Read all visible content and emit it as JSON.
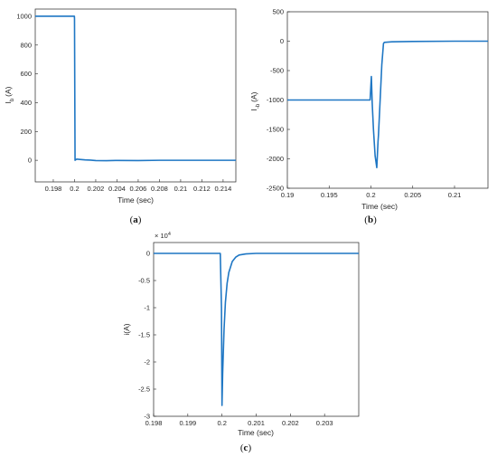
{
  "chart_data": [
    {
      "type": "line",
      "caption": "a",
      "title": "",
      "xlabel": "Time (sec)",
      "ylabel": "I",
      "ylabel_sub": "b",
      "ylabel_unit": "(A)",
      "xlim": [
        0.1963,
        0.2152
      ],
      "ylim": [
        -150,
        1050
      ],
      "xticks": [
        0.198,
        0.2,
        0.202,
        0.204,
        0.206,
        0.208,
        0.21,
        0.212,
        0.214
      ],
      "xtick_labels": [
        "0.198",
        "0.2",
        "0.202",
        "0.204",
        "0.206",
        "0.208",
        "0.21",
        "0.212",
        "0.214"
      ],
      "yticks": [
        0,
        200,
        400,
        600,
        800,
        1000
      ],
      "ytick_labels": [
        "0",
        "200",
        "400",
        "600",
        "800",
        "1000"
      ],
      "grid": true,
      "series": [
        {
          "color": "#1f77c4",
          "x": [
            0.1963,
            0.19999,
            0.2,
            0.20005,
            0.2002,
            0.2005,
            0.201,
            0.2015,
            0.202,
            0.203,
            0.204,
            0.206,
            0.208,
            0.21,
            0.212,
            0.2152
          ],
          "y": [
            1000,
            1000,
            980,
            0,
            8,
            6,
            3,
            1,
            -2,
            -3,
            -1,
            -2,
            0,
            0,
            0,
            0
          ]
        }
      ]
    },
    {
      "type": "line",
      "caption": "b",
      "title": "",
      "xlabel": "Time (sec)",
      "ylabel": "I",
      "ylabel_sub": "-b",
      "ylabel_unit": "(A)",
      "xlim": [
        0.19,
        0.214
      ],
      "ylim": [
        -2500,
        500
      ],
      "xticks": [
        0.19,
        0.195,
        0.2,
        0.205,
        0.21
      ],
      "xtick_labels": [
        "0.19",
        "0.195",
        "0.2",
        "0.205",
        "0.21"
      ],
      "yticks": [
        -2500,
        -2000,
        -1500,
        -1000,
        -500,
        0,
        500
      ],
      "ytick_labels": [
        "-2500",
        "-2000",
        "-1500",
        "-1000",
        "-500",
        "0",
        "500"
      ],
      "grid": true,
      "series": [
        {
          "color": "#1f77c4",
          "x": [
            0.19,
            0.1999,
            0.20005,
            0.20015,
            0.2003,
            0.2005,
            0.2007,
            0.20085,
            0.2009,
            0.2011,
            0.2013,
            0.2015,
            0.2016,
            0.2025,
            0.205,
            0.21,
            0.214
          ],
          "y": [
            -1000,
            -1000,
            -600,
            -1050,
            -1500,
            -1950,
            -2150,
            -1700,
            -1600,
            -1000,
            -400,
            -40,
            -20,
            -10,
            -5,
            0,
            0
          ]
        }
      ]
    },
    {
      "type": "line",
      "caption": "c",
      "title": "",
      "xlabel": "Time (sec)",
      "ylabel": "i(A)",
      "multiplier": "× 10",
      "multiplier_exp": "4",
      "xlim": [
        0.198,
        0.204
      ],
      "ylim": [
        -3,
        0.2
      ],
      "xticks": [
        0.198,
        0.199,
        0.2,
        0.201,
        0.202,
        0.203
      ],
      "xtick_labels": [
        "0.198",
        "0.199",
        "0.2",
        "0.201",
        "0.202",
        "0.203"
      ],
      "yticks": [
        -3,
        -2.5,
        -2,
        -1.5,
        -1,
        -0.5,
        0
      ],
      "ytick_labels": [
        "-3",
        "-2.5",
        "-2",
        "-1.5",
        "-1",
        "-0.5",
        "0"
      ],
      "grid": true,
      "series": [
        {
          "color": "#1f77c4",
          "x": [
            0.198,
            0.19995,
            0.199985,
            0.2,
            0.20002,
            0.20006,
            0.2001,
            0.20015,
            0.2002,
            0.2003,
            0.2004,
            0.2005,
            0.2007,
            0.201,
            0.204
          ],
          "y": [
            0,
            0,
            -1.0,
            -2.8,
            -2.2,
            -1.4,
            -0.9,
            -0.55,
            -0.35,
            -0.15,
            -0.07,
            -0.03,
            -0.01,
            0,
            0
          ]
        }
      ]
    }
  ]
}
